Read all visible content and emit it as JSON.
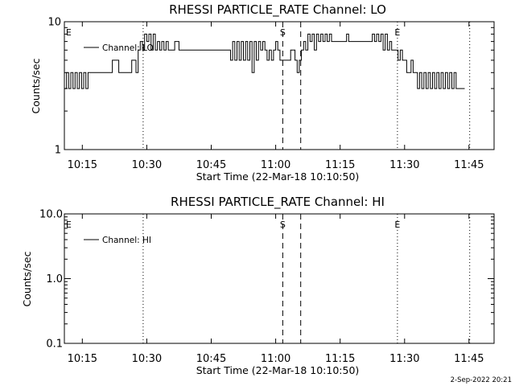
{
  "footer_date": "2-Sep-2022 20:21",
  "chart_data": [
    {
      "type": "line",
      "title": "RHESSI PARTICLE_RATE Channel: LO",
      "xlabel": "Start Time (22-Mar-18 10:10:50)",
      "ylabel": "Counts/sec",
      "xlim": [
        "10:10:50",
        "11:50:50"
      ],
      "ylim": [
        1,
        10
      ],
      "yscale": "log",
      "grid": false,
      "legend_position": "top-left",
      "x_ticks": [
        "10:15",
        "10:30",
        "10:45",
        "11:00",
        "11:15",
        "11:30",
        "11:45"
      ],
      "y_ticks": [
        "1",
        "10"
      ],
      "series": [
        {
          "name": "Channel: LO",
          "color": "#000000",
          "points": [
            [
              "10:10:50",
              3
            ],
            [
              "10:11:20",
              4
            ],
            [
              "10:11:50",
              3
            ],
            [
              "10:12:20",
              4
            ],
            [
              "10:12:50",
              3
            ],
            [
              "10:13:20",
              4
            ],
            [
              "10:13:50",
              3
            ],
            [
              "10:14:20",
              4
            ],
            [
              "10:14:50",
              3
            ],
            [
              "10:15:20",
              4
            ],
            [
              "10:15:50",
              3
            ],
            [
              "10:16:20",
              4
            ],
            [
              "10:19:00",
              4
            ],
            [
              "10:21:00",
              4
            ],
            [
              "10:22:00",
              5
            ],
            [
              "10:23:00",
              5
            ],
            [
              "10:23:30",
              4
            ],
            [
              "10:26:00",
              4
            ],
            [
              "10:26:30",
              5
            ],
            [
              "10:27:00",
              5
            ],
            [
              "10:27:30",
              4
            ],
            [
              "10:28:00",
              6
            ],
            [
              "10:28:30",
              7
            ],
            [
              "10:29:00",
              6
            ],
            [
              "10:29:30",
              8
            ],
            [
              "10:30:00",
              7
            ],
            [
              "10:30:30",
              8
            ],
            [
              "10:31:00",
              6
            ],
            [
              "10:31:30",
              8
            ],
            [
              "10:32:00",
              6
            ],
            [
              "10:32:30",
              7
            ],
            [
              "10:33:00",
              6
            ],
            [
              "10:33:30",
              7
            ],
            [
              "10:34:00",
              6
            ],
            [
              "10:34:30",
              7
            ],
            [
              "10:35:00",
              6
            ],
            [
              "10:36:00",
              6
            ],
            [
              "10:36:30",
              7
            ],
            [
              "10:37:00",
              7
            ],
            [
              "10:37:30",
              6
            ],
            [
              "10:49:00",
              6
            ],
            [
              "10:49:30",
              5
            ],
            [
              "10:50:00",
              7
            ],
            [
              "10:50:30",
              5
            ],
            [
              "10:51:00",
              7
            ],
            [
              "10:51:30",
              5
            ],
            [
              "10:52:00",
              7
            ],
            [
              "10:52:30",
              5
            ],
            [
              "10:53:00",
              7
            ],
            [
              "10:53:30",
              5
            ],
            [
              "10:54:00",
              7
            ],
            [
              "10:54:30",
              4
            ],
            [
              "10:55:00",
              7
            ],
            [
              "10:55:30",
              5
            ],
            [
              "10:56:00",
              7
            ],
            [
              "10:56:30",
              6
            ],
            [
              "10:57:00",
              7
            ],
            [
              "10:57:30",
              6
            ],
            [
              "10:58:00",
              5
            ],
            [
              "10:58:30",
              6
            ],
            [
              "10:59:00",
              5
            ],
            [
              "10:59:30",
              6
            ],
            [
              "11:00:00",
              7
            ],
            [
              "11:00:30",
              6
            ],
            [
              "11:01:00",
              5
            ],
            [
              "11:03:00",
              5
            ],
            [
              "11:03:30",
              6
            ],
            [
              "11:04:00",
              6
            ],
            [
              "11:04:30",
              5
            ],
            [
              "11:05:00",
              4
            ],
            [
              "11:05:30",
              5
            ],
            [
              "11:06:00",
              6
            ],
            [
              "11:06:30",
              7
            ],
            [
              "11:07:00",
              6
            ],
            [
              "11:07:30",
              8
            ],
            [
              "11:08:00",
              7
            ],
            [
              "11:08:30",
              8
            ],
            [
              "11:09:00",
              6
            ],
            [
              "11:09:30",
              8
            ],
            [
              "11:10:00",
              7
            ],
            [
              "11:10:30",
              8
            ],
            [
              "11:11:00",
              7
            ],
            [
              "11:11:30",
              8
            ],
            [
              "11:12:00",
              7
            ],
            [
              "11:12:30",
              8
            ],
            [
              "11:13:00",
              7
            ],
            [
              "11:16:00",
              7
            ],
            [
              "11:16:30",
              8
            ],
            [
              "11:17:00",
              7
            ],
            [
              "11:22:00",
              7
            ],
            [
              "11:22:30",
              8
            ],
            [
              "11:23:00",
              7
            ],
            [
              "11:23:30",
              8
            ],
            [
              "11:24:00",
              7
            ],
            [
              "11:24:30",
              8
            ],
            [
              "11:25:00",
              6
            ],
            [
              "11:25:30",
              8
            ],
            [
              "11:26:00",
              6
            ],
            [
              "11:26:30",
              7
            ],
            [
              "11:27:00",
              6
            ],
            [
              "11:28:00",
              6
            ],
            [
              "11:28:30",
              5
            ],
            [
              "11:29:00",
              6
            ],
            [
              "11:29:30",
              5
            ],
            [
              "11:30:00",
              5
            ],
            [
              "11:30:30",
              4
            ],
            [
              "11:31:00",
              4
            ],
            [
              "11:31:30",
              5
            ],
            [
              "11:32:00",
              4
            ],
            [
              "11:32:30",
              4
            ],
            [
              "11:33:00",
              3
            ],
            [
              "11:33:30",
              4
            ],
            [
              "11:34:00",
              3
            ],
            [
              "11:34:30",
              4
            ],
            [
              "11:35:00",
              3
            ],
            [
              "11:35:30",
              4
            ],
            [
              "11:36:00",
              3
            ],
            [
              "11:36:30",
              4
            ],
            [
              "11:37:00",
              3
            ],
            [
              "11:37:30",
              4
            ],
            [
              "11:38:00",
              3
            ],
            [
              "11:38:30",
              4
            ],
            [
              "11:39:00",
              3
            ],
            [
              "11:39:30",
              4
            ],
            [
              "11:40:00",
              3
            ],
            [
              "11:40:30",
              4
            ],
            [
              "11:41:00",
              3
            ],
            [
              "11:41:30",
              4
            ],
            [
              "11:42:00",
              3
            ],
            [
              "11:44:00",
              3
            ]
          ]
        }
      ],
      "markers": {
        "eclipse_lines": [
          "10:29:10",
          "11:28:20",
          "11:45:10"
        ],
        "saa_lines": [
          "11:01:40",
          "11:05:50"
        ],
        "labels": [
          {
            "text": "E",
            "time": "10:11:00"
          },
          {
            "text": "S",
            "time": "11:01:40"
          },
          {
            "text": "E",
            "time": "11:28:20"
          }
        ]
      }
    },
    {
      "type": "line",
      "title": "RHESSI PARTICLE_RATE Channel: HI",
      "xlabel": "Start Time (22-Mar-18 10:10:50)",
      "ylabel": "Counts/sec",
      "xlim": [
        "10:10:50",
        "11:50:50"
      ],
      "ylim": [
        0.1,
        10
      ],
      "yscale": "log",
      "grid": false,
      "legend_position": "top-left",
      "x_ticks": [
        "10:15",
        "10:30",
        "10:45",
        "11:00",
        "11:15",
        "11:30",
        "11:45"
      ],
      "y_ticks": [
        "0.1",
        "1.0",
        "10.0"
      ],
      "series": [
        {
          "name": "Channel: HI",
          "color": "#000000",
          "points": []
        }
      ],
      "markers": {
        "eclipse_lines": [
          "10:29:10",
          "11:28:20",
          "11:45:10"
        ],
        "saa_lines": [
          "11:01:40",
          "11:05:50"
        ],
        "labels": [
          {
            "text": "E",
            "time": "10:11:00"
          },
          {
            "text": "S",
            "time": "11:01:40"
          },
          {
            "text": "E",
            "time": "11:28:20"
          }
        ]
      }
    }
  ]
}
